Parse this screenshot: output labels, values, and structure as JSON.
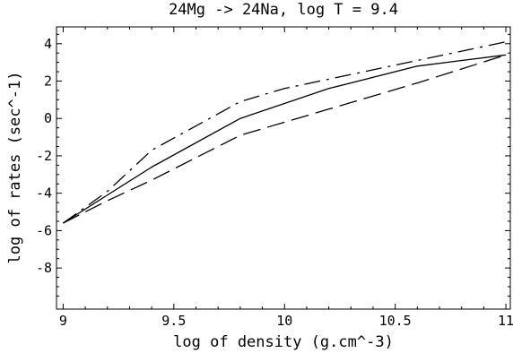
{
  "chart_data": {
    "type": "line",
    "title": "24Mg -> 24Na, log T = 9.4",
    "xlabel": "log of density (g.cm^-3)",
    "ylabel": "log of rates (sec^-1)",
    "xlim": [
      8.97,
      11.02
    ],
    "ylim": [
      -10.2,
      4.9
    ],
    "xticks": [
      9,
      9.5,
      10,
      10.5,
      11
    ],
    "xtick_labels": [
      "9",
      "9.5",
      "10",
      "10.5",
      "11"
    ],
    "yticks": [
      4,
      2,
      0,
      -2,
      -4,
      -6,
      -8
    ],
    "ytick_labels": [
      "4",
      "2",
      "0",
      "-2",
      "-4",
      "-6",
      "-8"
    ],
    "grid": false,
    "series": [
      {
        "style": "solid",
        "x": [
          9.0,
          9.4,
          9.8,
          10.2,
          10.6,
          11.0
        ],
        "y": [
          -5.6,
          -2.6,
          0.0,
          1.6,
          2.8,
          3.4
        ]
      },
      {
        "style": "dash-dot",
        "x": [
          9.0,
          9.2,
          9.4,
          9.6,
          9.8,
          10.0,
          10.2,
          10.6,
          11.0
        ],
        "y": [
          -5.6,
          -3.9,
          -1.7,
          -0.4,
          0.9,
          1.6,
          2.1,
          3.1,
          4.1
        ]
      },
      {
        "style": "long-dash",
        "x": [
          9.0,
          9.2,
          9.4,
          9.6,
          9.8,
          10.2,
          10.6,
          11.0
        ],
        "y": [
          -5.6,
          -4.4,
          -3.3,
          -2.1,
          -0.9,
          0.5,
          1.9,
          3.4
        ]
      }
    ]
  }
}
